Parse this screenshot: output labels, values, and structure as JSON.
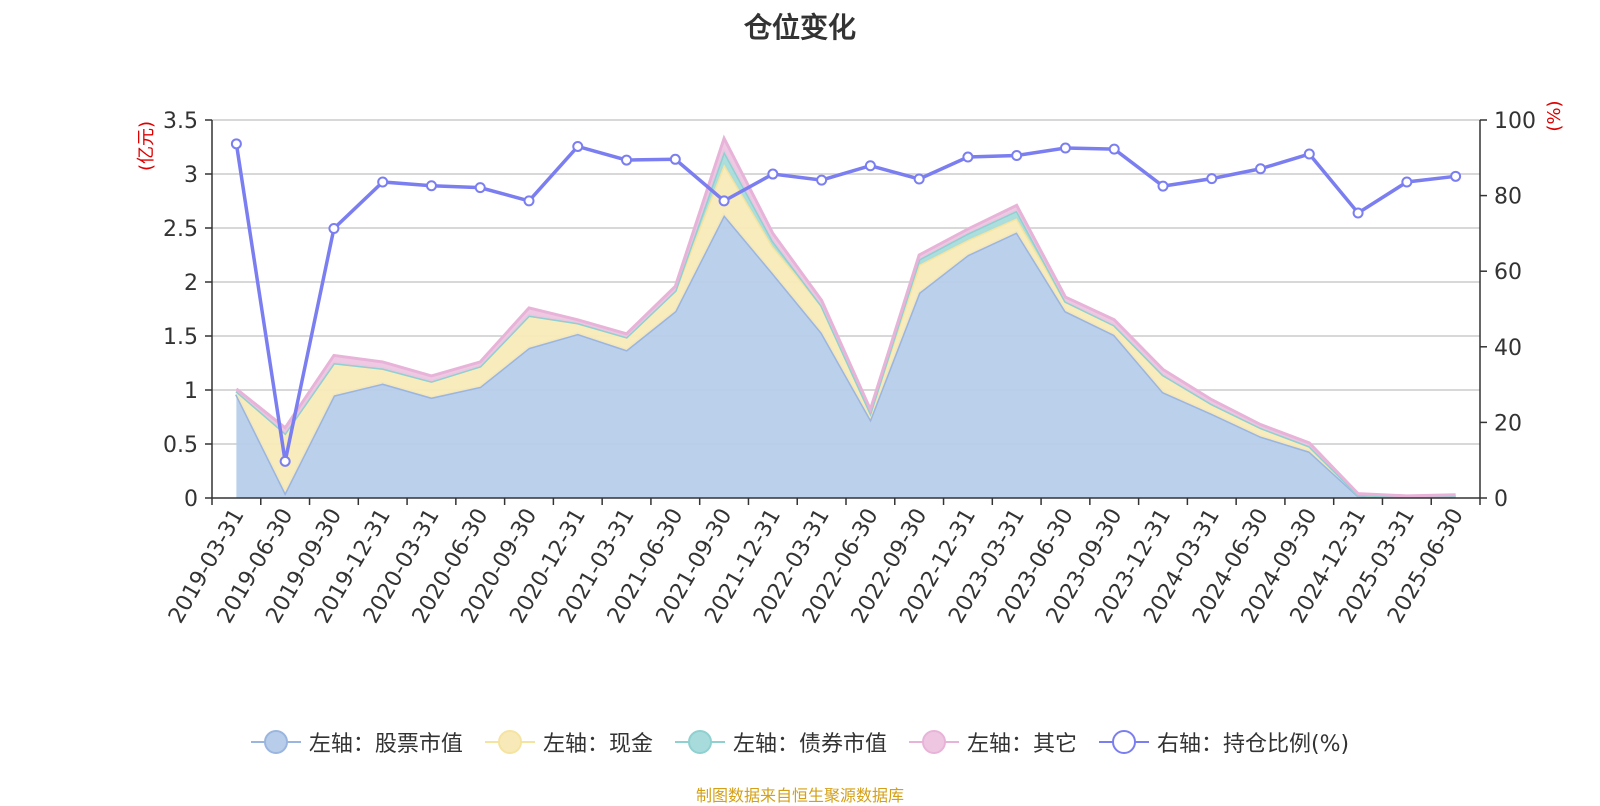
{
  "chart_data": {
    "type": "area",
    "title": "仓位变化",
    "categories": [
      "2019-03-31",
      "2019-06-30",
      "2019-09-30",
      "2019-12-31",
      "2020-03-31",
      "2020-06-30",
      "2020-09-30",
      "2020-12-31",
      "2021-03-31",
      "2021-06-30",
      "2021-09-30",
      "2021-12-31",
      "2022-03-31",
      "2022-06-30",
      "2022-09-30",
      "2022-12-31",
      "2023-03-31",
      "2023-06-30",
      "2023-09-30",
      "2023-12-31",
      "2024-03-31",
      "2024-06-30",
      "2024-09-30",
      "2024-12-31",
      "2025-03-31",
      "2025-06-30"
    ],
    "left_axis": {
      "label": "(亿元)",
      "min": 0,
      "max": 3.5,
      "ticks": [
        0,
        0.5,
        1,
        1.5,
        2,
        2.5,
        3,
        3.5
      ]
    },
    "right_axis": {
      "label": "(%)",
      "min": 0,
      "max": 100,
      "ticks": [
        0,
        20,
        40,
        60,
        80,
        100
      ]
    },
    "series": [
      {
        "name": "左轴：股票市值",
        "axis": "left",
        "stack": true,
        "color": "#9ab5e0",
        "fill": "#b7cdea",
        "values": [
          0.96,
          0.05,
          0.95,
          1.06,
          0.93,
          1.03,
          1.39,
          1.52,
          1.37,
          1.73,
          2.62,
          2.08,
          1.53,
          0.73,
          1.9,
          2.25,
          2.46,
          1.73,
          1.51,
          0.98,
          0.78,
          0.57,
          0.43,
          0.02,
          0.01,
          0.01
        ]
      },
      {
        "name": "左轴：现金",
        "axis": "left",
        "stack": true,
        "color": "#f5e3a0",
        "fill": "#f8eab8",
        "values": [
          0.03,
          0.55,
          0.3,
          0.14,
          0.15,
          0.19,
          0.3,
          0.1,
          0.12,
          0.19,
          0.47,
          0.25,
          0.25,
          0.06,
          0.26,
          0.14,
          0.13,
          0.09,
          0.09,
          0.16,
          0.09,
          0.08,
          0.05,
          0.01,
          0.0,
          0.01
        ]
      },
      {
        "name": "左轴：债券市值",
        "axis": "left",
        "stack": true,
        "color": "#8fd0d0",
        "fill": "#a8dcdc",
        "values": [
          0.0,
          0.0,
          0.0,
          0.0,
          0.0,
          0.0,
          0.0,
          0.0,
          0.0,
          0.0,
          0.12,
          0.05,
          0.0,
          0.0,
          0.05,
          0.06,
          0.07,
          0.0,
          0.0,
          0.0,
          0.0,
          0.0,
          0.0,
          0.0,
          0.0,
          0.0
        ]
      },
      {
        "name": "左轴：其它",
        "axis": "left",
        "stack": true,
        "color": "#e8b3d8",
        "fill": "#eec6e2",
        "values": [
          0.02,
          0.05,
          0.07,
          0.06,
          0.05,
          0.04,
          0.07,
          0.03,
          0.03,
          0.04,
          0.12,
          0.07,
          0.05,
          0.03,
          0.04,
          0.04,
          0.05,
          0.04,
          0.05,
          0.05,
          0.04,
          0.03,
          0.03,
          0.01,
          0.01,
          0.01
        ]
      },
      {
        "name": "右轴：持仓比例(%)",
        "axis": "right",
        "stack": false,
        "type": "line",
        "color": "#7b7ef0",
        "values": [
          93.7,
          9.7,
          71.3,
          83.6,
          82.6,
          82.1,
          78.6,
          93.0,
          89.4,
          89.6,
          78.6,
          85.7,
          84.1,
          87.9,
          84.4,
          90.2,
          90.6,
          92.6,
          92.3,
          82.5,
          84.5,
          87.1,
          91.0,
          75.4,
          83.6,
          85.1
        ]
      }
    ],
    "grid": true,
    "legend": "bottom-center"
  },
  "source_note": "制图数据来自恒生聚源数据库"
}
